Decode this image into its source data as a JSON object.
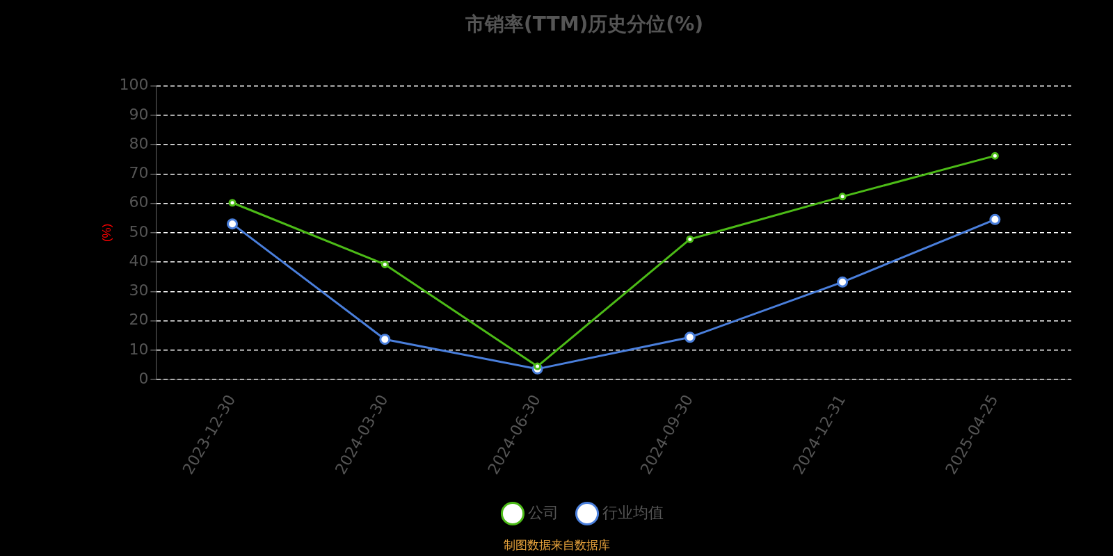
{
  "chart_data": {
    "type": "line",
    "title": "市销率(TTM)历史分位(%)",
    "ylabel": "(%)",
    "categories": [
      "2023-12-30",
      "2024-03-30",
      "2024-06-30",
      "2024-09-30",
      "2024-12-31",
      "2025-04-25"
    ],
    "series": [
      {
        "name": "公司",
        "color": "#4cbb17",
        "values": [
          60.2,
          39.2,
          4.5,
          47.8,
          62.3,
          76.2
        ]
      },
      {
        "name": "行业均值",
        "color": "#4a7fdc",
        "values": [
          53,
          13.7,
          3.6,
          14.4,
          33.2,
          54.5
        ]
      }
    ],
    "ylim": [
      0,
      100
    ],
    "yticks": [
      0,
      10,
      20,
      30,
      40,
      50,
      60,
      70,
      80,
      90,
      100
    ],
    "grid": "y",
    "legend": "bottom",
    "marker": "circle",
    "line_style": "solid",
    "annotations": [
      "制图数据来自数据库"
    ]
  }
}
